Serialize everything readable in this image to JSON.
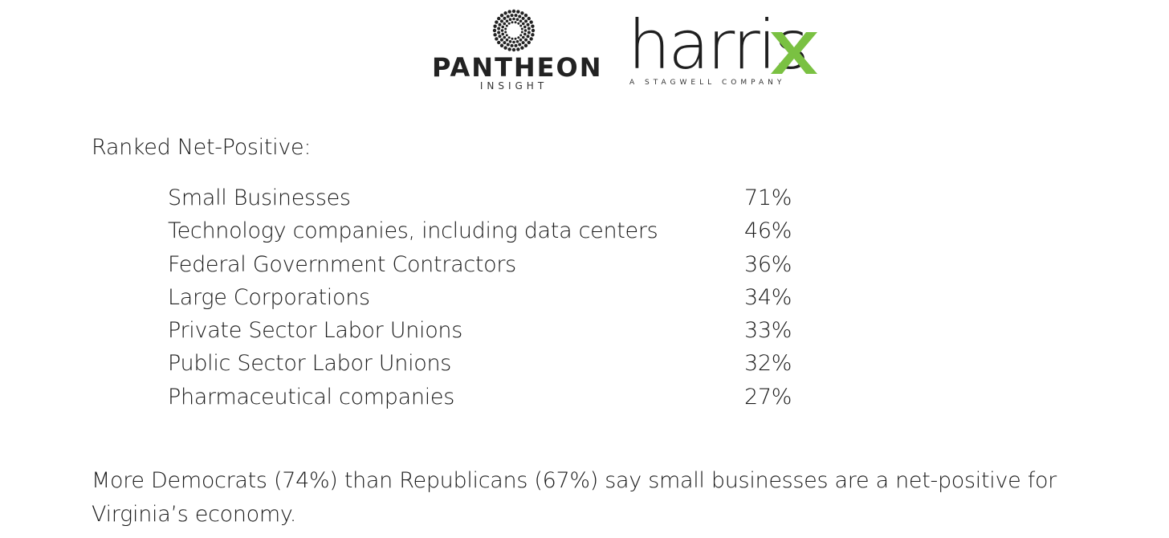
{
  "logos": {
    "pantheon": {
      "icon": "sunburst-icon",
      "name": "PANTHEON",
      "subtitle": "INSIGHT"
    },
    "harrisx": {
      "name": "harris",
      "mark": "x-mark-icon",
      "subtitle": "A STAGWELL COMPANY",
      "accent_color": "#7ac142"
    }
  },
  "heading": "Ranked Net-Positive:",
  "rankings": [
    {
      "label": "Small Businesses",
      "value": "71%"
    },
    {
      "label": "Technology companies, including data centers",
      "value": "46%"
    },
    {
      "label": "Federal Government Contractors",
      "value": "36%"
    },
    {
      "label": "Large Corporations",
      "value": "34%"
    },
    {
      "label": "Private Sector Labor Unions",
      "value": "33%"
    },
    {
      "label": "Public Sector Labor Unions",
      "value": "32%"
    },
    {
      "label": "Pharmaceutical companies",
      "value": "27%"
    }
  ],
  "footnote": "More Democrats (74%) than Republicans (67%) say small businesses are a net-positive for Virginia’s economy."
}
